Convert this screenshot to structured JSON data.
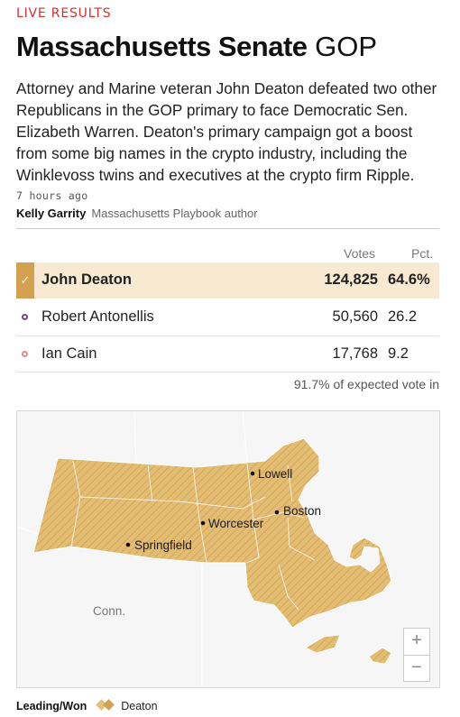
{
  "header": {
    "kicker": "LIVE RESULTS",
    "title": "Massachusetts Senate",
    "party": "GOP",
    "dek": "Attorney and Marine veteran John Deaton defeated two other Republicans in the GOP primary to face Democratic Sen. Elizabeth Warren. Deaton's primary campaign got a boost from some big names in the crypto industry, including the Winklevoss twins and executives at the crypto firm Ripple.",
    "timestamp": "7 hours ago",
    "author": "Kelly Garrity",
    "author_role": "Massachusetts Playbook author"
  },
  "results": {
    "columns": {
      "votes": "Votes",
      "pct": "Pct."
    },
    "candidates": [
      {
        "name": "John Deaton",
        "votes": "124,825",
        "pct": "64.6%",
        "winner": true,
        "color": "#d4a150",
        "icon": "check-icon"
      },
      {
        "name": "Robert Antonellis",
        "votes": "50,560",
        "pct": "26.2",
        "winner": false,
        "color": "#7b3f8c",
        "icon": "candidate-dot-icon"
      },
      {
        "name": "Ian Cain",
        "votes": "17,768",
        "pct": "9.2",
        "winner": false,
        "color": "#e08a8a",
        "icon": "candidate-dot-icon"
      }
    ],
    "expected_vote": "91.7% of expected vote in"
  },
  "map": {
    "cities": [
      "Lowell",
      "Boston",
      "Worcester",
      "Springfield"
    ],
    "neighbor_label": "Conn.",
    "zoom_in": "+",
    "zoom_out": "−",
    "fill_color": "#e3bd74"
  },
  "legend": {
    "title": "Leading/Won",
    "candidate": "Deaton"
  }
}
